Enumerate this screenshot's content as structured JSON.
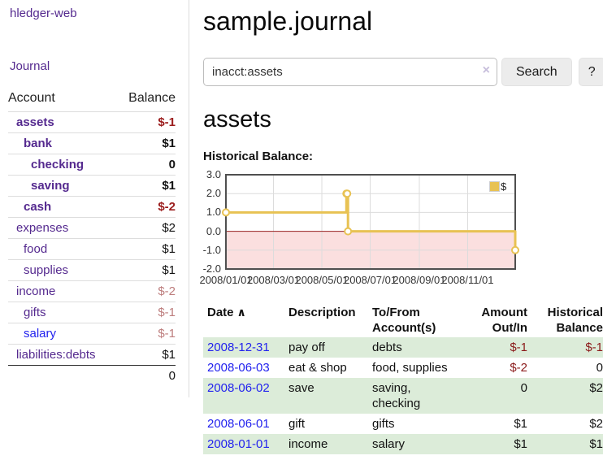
{
  "sidebar": {
    "brand": "hledger-web",
    "journal_link": "Journal",
    "accounts_table": {
      "col_account": "Account",
      "col_balance": "Balance",
      "rows": [
        {
          "name": "assets",
          "balance": "$-1"
        },
        {
          "name": "bank",
          "balance": "$1"
        },
        {
          "name": "checking",
          "balance": "0"
        },
        {
          "name": "saving",
          "balance": "$1"
        },
        {
          "name": "cash",
          "balance": "$-2"
        },
        {
          "name": "expenses",
          "balance": "$2"
        },
        {
          "name": "food",
          "balance": "$1"
        },
        {
          "name": "supplies",
          "balance": "$1"
        },
        {
          "name": "income",
          "balance": "$-2"
        },
        {
          "name": "gifts",
          "balance": "$-1"
        },
        {
          "name": "salary",
          "balance": "$-1"
        },
        {
          "name": "liabilities:debts",
          "balance": "$1"
        }
      ],
      "total": "0"
    }
  },
  "main": {
    "title": "sample.journal",
    "search": {
      "value": "inacct:assets",
      "clear_icon": "×",
      "button_label": "Search",
      "help_label": "?"
    },
    "account_heading": "assets",
    "chart_label": "Historical Balance:",
    "chart_data": {
      "type": "line",
      "step": true,
      "title": "Historical Balance",
      "x_range": [
        "2008-01-01",
        "2008-12-31"
      ],
      "ylim": [
        -2,
        3
      ],
      "yticks": [
        "3.0",
        "2.0",
        "1.0",
        "0.0",
        "-1.0",
        "-2.0"
      ],
      "xticks": [
        "2008/01/01",
        "2008/03/01",
        "2008/05/01",
        "2008/07/01",
        "2008/09/01",
        "2008/11/01"
      ],
      "legend_position": "top-right",
      "grid": true,
      "series": [
        {
          "name": "$",
          "color": "#e8c253",
          "points": [
            [
              "2008-01-01",
              1
            ],
            [
              "2008-06-01",
              2
            ],
            [
              "2008-06-02",
              2
            ],
            [
              "2008-06-03",
              0
            ],
            [
              "2008-12-31",
              -1
            ]
          ]
        }
      ],
      "colors": {
        "negative_fill": "#fbdfdf",
        "zero_line": "#992222",
        "grid": "#dcdcdc",
        "border": "#4f4f4f"
      }
    },
    "register": {
      "headers": {
        "date": "Date",
        "sort_icon": "∧",
        "description": "Description",
        "accounts": "To/From Account(s)",
        "amount": "Amount Out/In",
        "balance": "Historical Balance"
      },
      "rows": [
        {
          "date": "2008-12-31",
          "description": "pay off",
          "accounts": "debts",
          "amount": "$-1",
          "balance": "$-1"
        },
        {
          "date": "2008-06-03",
          "description": "eat & shop",
          "accounts": "food, supplies",
          "amount": "$-2",
          "balance": "0"
        },
        {
          "date": "2008-06-02",
          "description": "save",
          "accounts": "saving, checking",
          "amount": "0",
          "balance": "$2"
        },
        {
          "date": "2008-06-01",
          "description": "gift",
          "accounts": "gifts",
          "amount": "$1",
          "balance": "$2"
        },
        {
          "date": "2008-01-01",
          "description": "income",
          "accounts": "salary",
          "amount": "$1",
          "balance": "$1"
        }
      ]
    }
  }
}
